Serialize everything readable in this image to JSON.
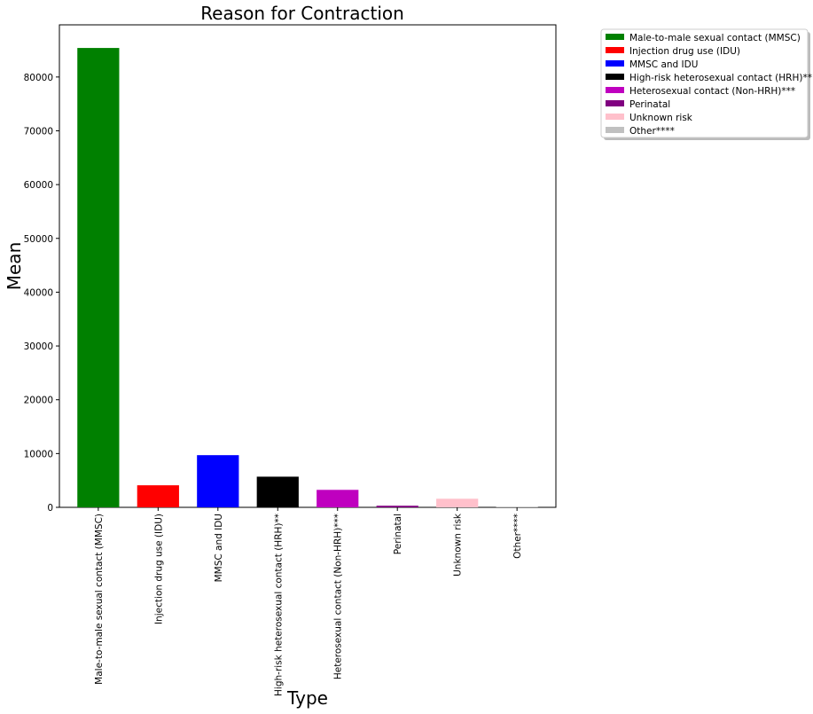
{
  "chart_data": {
    "type": "bar",
    "title": "Reason for Contraction",
    "xlabel": "Type",
    "ylabel": "Mean",
    "categories": [
      "Male-to-male sexual contact (MMSC)",
      "Injection drug use (IDU)",
      "MMSC and IDU",
      "High-risk heterosexual contact (HRH)**",
      "Heterosexual contact (Non-HRH)***",
      "Perinatal",
      "Unknown risk",
      "Other****"
    ],
    "values": [
      85400,
      4100,
      9700,
      5700,
      3250,
      300,
      1600,
      120
    ],
    "colors": [
      "#008000",
      "#ff0000",
      "#0000ff",
      "#000000",
      "#bf00bf",
      "#800080",
      "#ffc0cb",
      "#c0c0c0"
    ],
    "ylim": [
      0,
      89700
    ],
    "yticks": [
      0,
      10000,
      20000,
      30000,
      40000,
      50000,
      60000,
      70000,
      80000
    ],
    "grid": false,
    "legend": {
      "placement": "outside-top-right",
      "entries": [
        "Male-to-male sexual contact (MMSC)",
        "Injection drug use (IDU)",
        "MMSC and IDU",
        "High-risk heterosexual contact (HRH)**",
        "Heterosexual contact (Non-HRH)***",
        "Perinatal",
        "Unknown risk",
        "Other****"
      ]
    }
  }
}
